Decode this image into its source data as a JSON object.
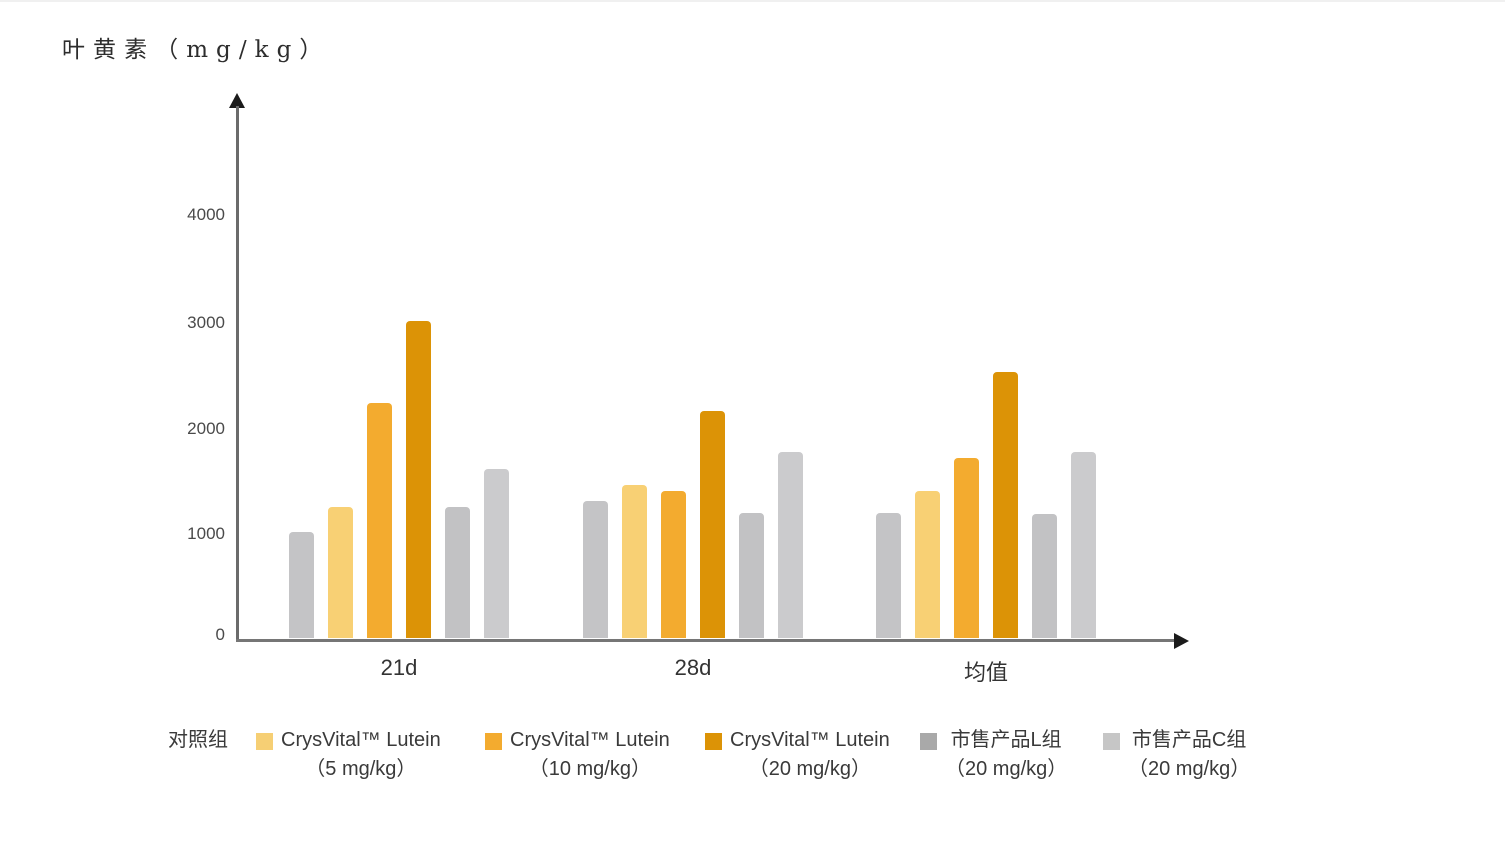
{
  "title": "叶黄素（mg/kg）",
  "chart_data": {
    "type": "bar",
    "title": "叶黄素（mg/kg）",
    "ylabel": "叶黄素（mg/kg）",
    "xlabel": "",
    "categories": [
      "21d",
      "28d",
      "均值"
    ],
    "series": [
      {
        "key": "control",
        "name": "对照组",
        "color": "#c4c4c6",
        "values": [
          1000,
          1300,
          1180
        ]
      },
      {
        "key": "crysvital-5",
        "name": "CrysVital™ Lutein（5 mg/kg）",
        "color": "#f8d074",
        "values": [
          1240,
          1450,
          1390
        ]
      },
      {
        "key": "crysvital-10",
        "name": "CrysVital™ Lutein（10 mg/kg）",
        "color": "#f3ab2f",
        "values": [
          2220,
          1390,
          1700
        ]
      },
      {
        "key": "crysvital-20",
        "name": "CrysVital™ Lutein（20 mg/kg）",
        "color": "#dc9306",
        "values": [
          3000,
          2150,
          2520
        ]
      },
      {
        "key": "market-l",
        "name": "市售产品L组（20 mg/kg）",
        "color": "#c2c2c4",
        "values": [
          1240,
          1180,
          1170
        ]
      },
      {
        "key": "market-c",
        "name": "市售产品C组（20 mg/kg）",
        "color": "#cbcbcd",
        "values": [
          1600,
          1760,
          1760
        ]
      }
    ],
    "yticks": [
      0,
      1000,
      2000,
      3000,
      4000
    ],
    "ylim": [
      0,
      5000
    ],
    "grid": false,
    "legend_position": "bottom"
  },
  "legend": {
    "items": [
      {
        "label": "对照组",
        "sublabel": "",
        "swatch_color": null
      },
      {
        "label": "CrysVital™ Lutein",
        "sublabel": "（5 mg/kg）",
        "swatch_color": "#f6cf74"
      },
      {
        "label": "CrysVital™ Lutein",
        "sublabel": "（10 mg/kg）",
        "swatch_color": "#f3ab2f"
      },
      {
        "label": "CrysVital™ Lutein",
        "sublabel": "（20 mg/kg）",
        "swatch_color": "#dc9306"
      },
      {
        "label": "市售产品L组",
        "sublabel": "（20 mg/kg）",
        "swatch_color": "#a9a9a9"
      },
      {
        "label": "市售产品C组",
        "sublabel": "（20 mg/kg）",
        "swatch_color": "#c6c6c6"
      }
    ]
  }
}
